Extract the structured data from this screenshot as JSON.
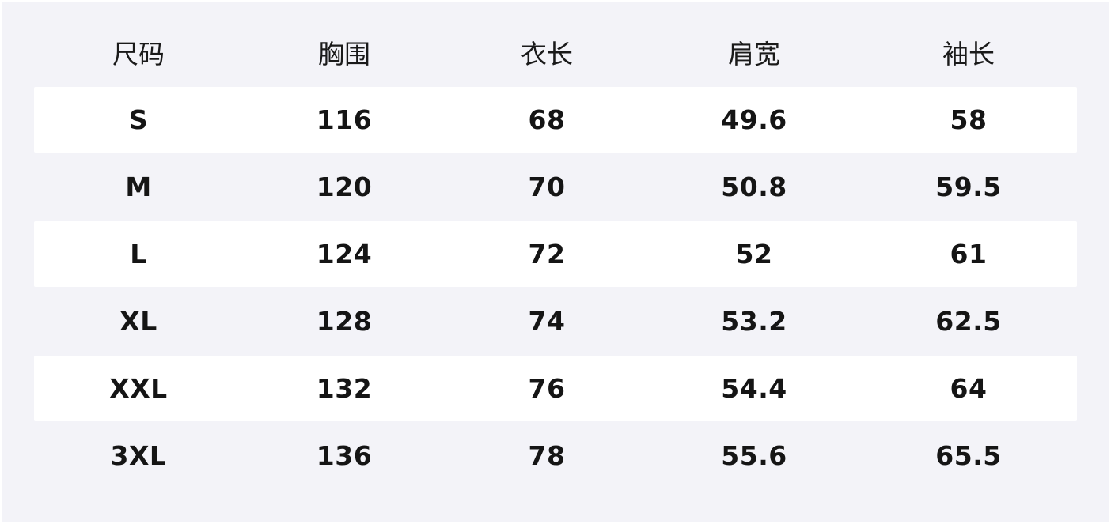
{
  "headers": [
    "尺码",
    "胸围",
    "衣长",
    "肩宽",
    "袖长"
  ],
  "rows": [
    [
      "S",
      "116",
      "68",
      "49.6",
      "58"
    ],
    [
      "M",
      "120",
      "70",
      "50.8",
      "59.5"
    ],
    [
      "L",
      "124",
      "72",
      "52",
      "61"
    ],
    [
      "XL",
      "128",
      "74",
      "53.2",
      "62.5"
    ],
    [
      "XXL",
      "132",
      "76",
      "54.4",
      "64"
    ],
    [
      "3XL",
      "136",
      "78",
      "55.6",
      "65.5"
    ]
  ],
  "colors": {
    "background": "#f3f3f8",
    "row_highlight": "#ffffff",
    "text": "#151515"
  }
}
